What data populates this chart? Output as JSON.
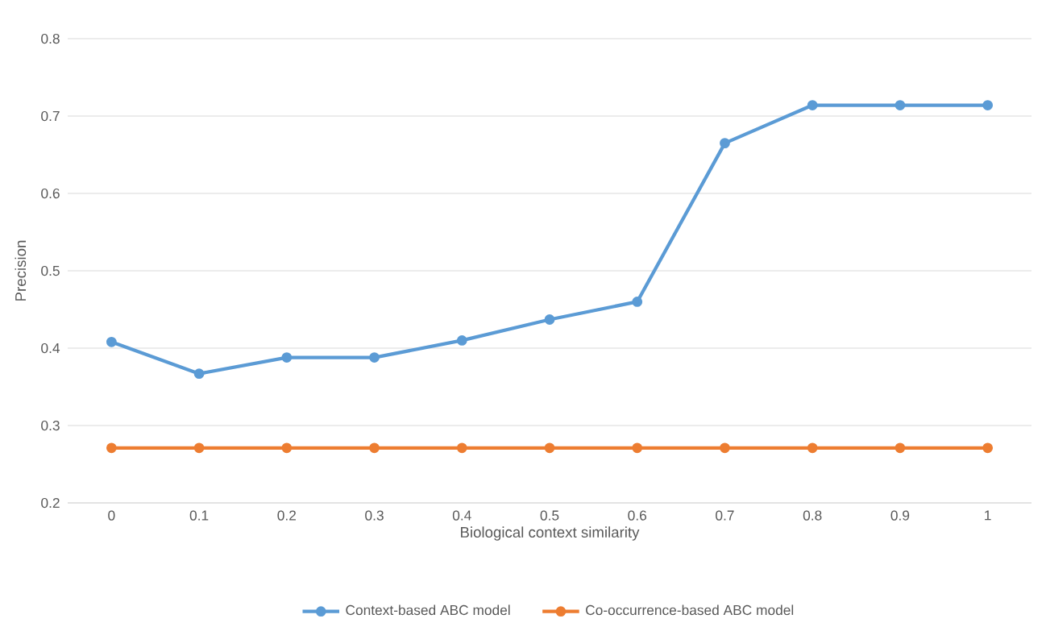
{
  "chart_data": {
    "type": "line",
    "xlabel": "Biological context similarity",
    "ylabel": "Precision",
    "categories": [
      "0",
      "0.1",
      "0.2",
      "0.3",
      "0.4",
      "0.5",
      "0.6",
      "0.7",
      "0.8",
      "0.9",
      "1"
    ],
    "series": [
      {
        "name": "Context-based ABC model",
        "color": "#5b9bd5",
        "values": [
          0.408,
          0.367,
          0.388,
          0.388,
          0.41,
          0.437,
          0.46,
          0.665,
          0.714,
          0.714,
          0.714
        ]
      },
      {
        "name": "Co-occurrence-based ABC model",
        "color": "#ed7d31",
        "values": [
          0.271,
          0.271,
          0.271,
          0.271,
          0.271,
          0.271,
          0.271,
          0.271,
          0.271,
          0.271,
          0.271
        ]
      }
    ],
    "ylim": [
      0.2,
      0.8
    ],
    "yticks": [
      0.2,
      0.3,
      0.4,
      0.5,
      0.6,
      0.7,
      0.8
    ],
    "grid": "y",
    "legend": "bottom",
    "marker": "circle",
    "line_style": "solid"
  }
}
